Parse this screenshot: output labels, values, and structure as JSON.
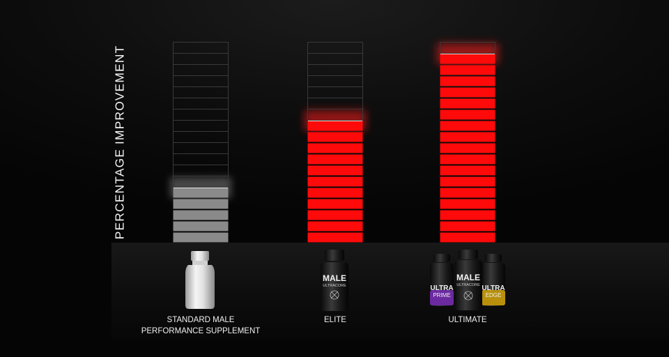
{
  "chart_data": {
    "type": "bar",
    "title": "",
    "xlabel": "",
    "ylabel": "PERCENTAGE IMPROVEMENT",
    "categories": [
      "STANDARD MALE\nPERFORMANCE SUPPLEMENT",
      "ELITE",
      "ULTIMATE"
    ],
    "values": [
      5,
      11,
      17
    ],
    "ylim": [
      0,
      18
    ],
    "segment_colors": [
      "#8a8a8a",
      "#ff0a0a",
      "#ff0a0a"
    ],
    "grid": false,
    "legend": "none"
  },
  "products": [
    {
      "name": "white-supplement-bottle",
      "labels": []
    },
    {
      "name": "male-ultracore-bottle",
      "labels": [
        "MALE",
        "ULTRACORE"
      ]
    },
    {
      "name": "ultimate-bundle",
      "labels": [
        "ULTRA",
        "PRIME",
        "MALE",
        "ULTRACORE",
        "ULTRA",
        "EDGE"
      ]
    }
  ],
  "colors": {
    "background": "#050505",
    "active_bar": "#ff0a0a",
    "standard_bar": "#8a8a8a",
    "empty_cell_stroke": "#3a3a3a",
    "text": "#f0f0f0",
    "prime_accent": "#6b2aa0",
    "edge_accent": "#b8900c"
  }
}
